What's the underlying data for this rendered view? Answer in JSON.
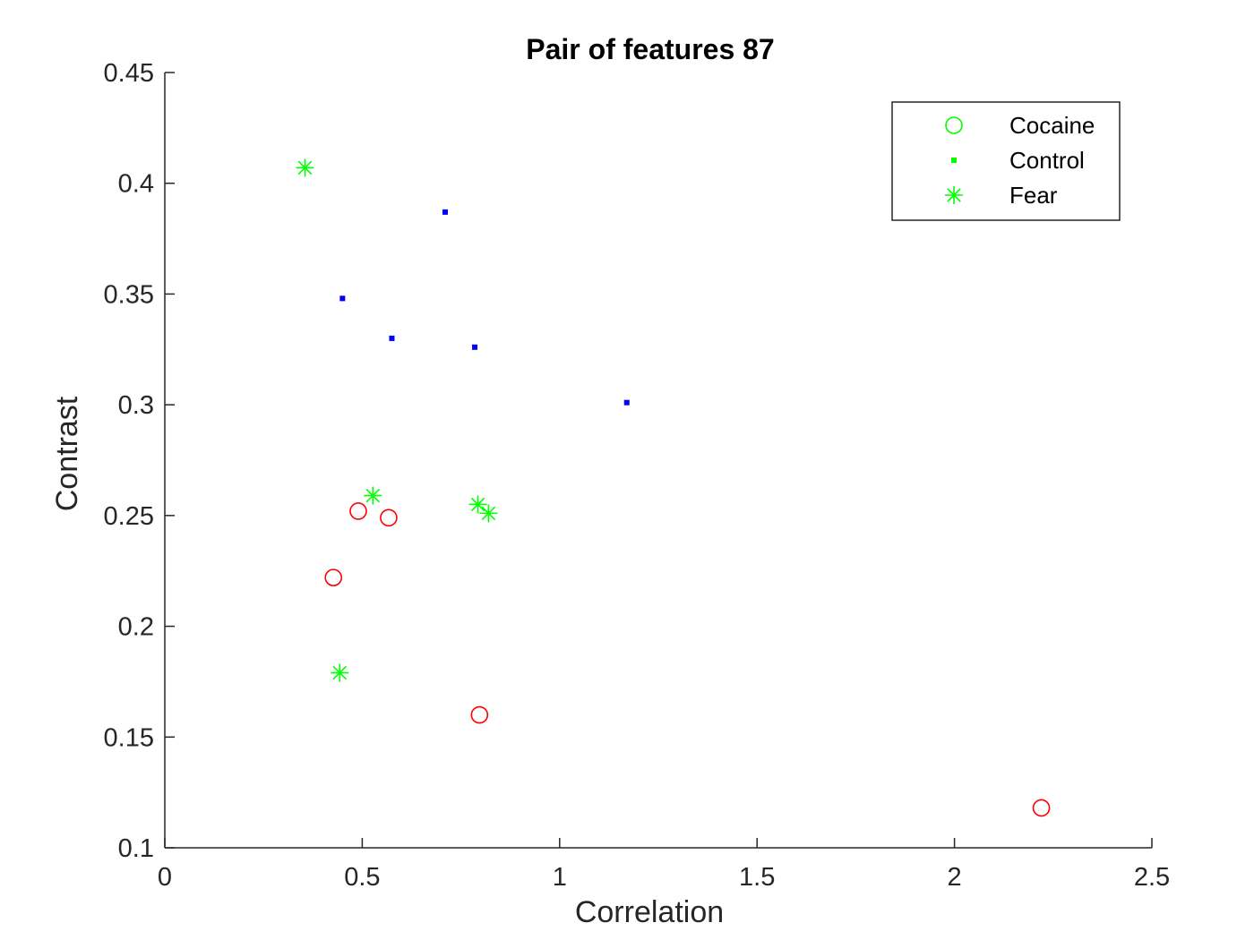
{
  "chart_data": {
    "type": "scatter",
    "title": "Pair of features 87",
    "xlabel": "Correlation",
    "ylabel": "Contrast",
    "xlim": [
      0,
      2.5
    ],
    "ylim": [
      0.1,
      0.45
    ],
    "xticks": [
      0,
      0.5,
      1,
      1.5,
      2,
      2.5
    ],
    "xtick_labels": [
      "0",
      "0.5",
      "1",
      "1.5",
      "2",
      "2.5"
    ],
    "yticks": [
      0.1,
      0.15,
      0.2,
      0.25,
      0.3,
      0.35,
      0.4,
      0.45
    ],
    "ytick_labels": [
      "0.1",
      "0.15",
      "0.2",
      "0.25",
      "0.3",
      "0.35",
      "0.4",
      "0.45"
    ],
    "grid": false,
    "legend_position": "top-right",
    "legend": [
      {
        "label": "Cocaine",
        "marker": "circle",
        "color": "#00ff00"
      },
      {
        "label": "Control",
        "marker": "square",
        "color": "#00ff00"
      },
      {
        "label": "Fear",
        "marker": "asterisk",
        "color": "#00ff00"
      }
    ],
    "series": [
      {
        "name": "Cocaine",
        "marker": "circle",
        "color": "#ff0000",
        "points": [
          {
            "x": 0.49,
            "y": 0.252
          },
          {
            "x": 0.567,
            "y": 0.249
          },
          {
            "x": 0.427,
            "y": 0.222
          },
          {
            "x": 0.797,
            "y": 0.16
          },
          {
            "x": 2.22,
            "y": 0.118
          }
        ]
      },
      {
        "name": "Control",
        "marker": "square",
        "color": "#0000ff",
        "points": [
          {
            "x": 0.71,
            "y": 0.387
          },
          {
            "x": 0.45,
            "y": 0.348
          },
          {
            "x": 0.575,
            "y": 0.33
          },
          {
            "x": 0.785,
            "y": 0.326
          },
          {
            "x": 1.17,
            "y": 0.301
          }
        ]
      },
      {
        "name": "Fear",
        "marker": "asterisk",
        "color": "#00ff00",
        "points": [
          {
            "x": 0.355,
            "y": 0.407
          },
          {
            "x": 0.527,
            "y": 0.259
          },
          {
            "x": 0.793,
            "y": 0.255
          },
          {
            "x": 0.82,
            "y": 0.251
          },
          {
            "x": 0.443,
            "y": 0.179
          }
        ]
      }
    ]
  }
}
